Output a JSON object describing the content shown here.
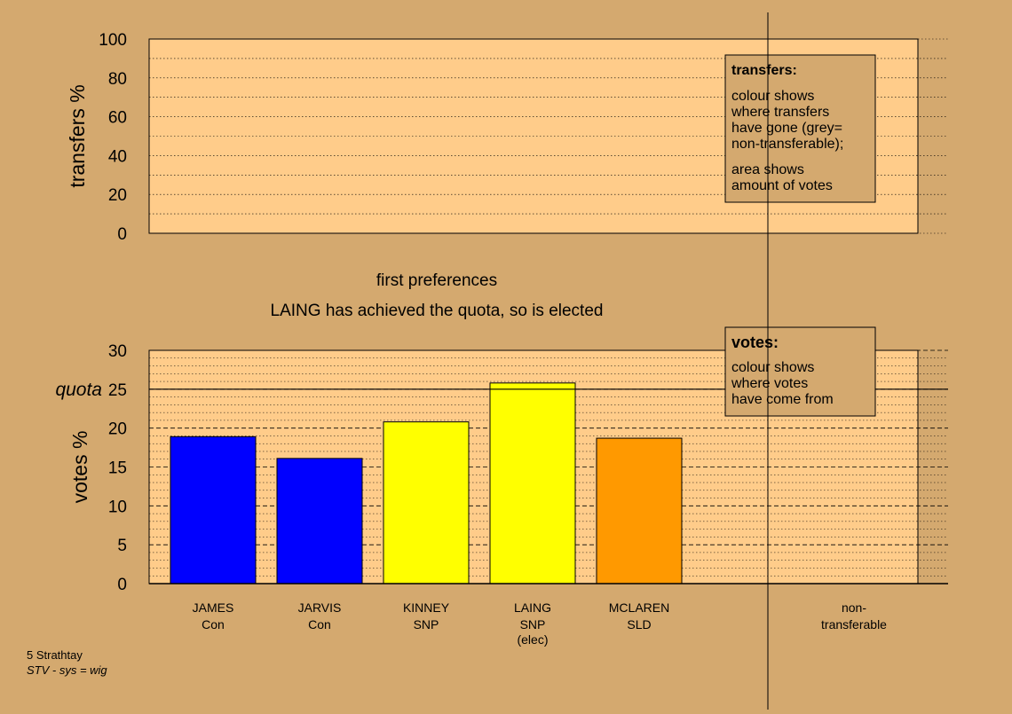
{
  "colors": {
    "background": "#d4a96f",
    "panel": "#ffcc8a",
    "con": "#0000ff",
    "snp": "#ffff00",
    "sld": "#ff9900",
    "legend_box": "#d4a96f"
  },
  "chart_data": [
    {
      "type": "bar",
      "title": "",
      "ylabel": "transfers %",
      "ylim": [
        0,
        100
      ],
      "yticks": [
        0,
        20,
        40,
        60,
        80,
        100
      ],
      "grid": true,
      "series": [],
      "legend": {
        "position": "top-right",
        "title": "transfers:",
        "lines1": [
          "colour shows",
          "where transfers",
          "have gone (grey=",
          "non-transferable);"
        ],
        "lines2": [
          "area shows",
          "amount of votes"
        ]
      }
    },
    {
      "type": "bar",
      "title": "first preferences",
      "subtitle": "LAING has achieved the quota, so is elected",
      "ylabel": "votes %",
      "ylim": [
        0,
        30
      ],
      "yticks": [
        0,
        5,
        10,
        15,
        20,
        25,
        30
      ],
      "quota": 25,
      "quota_label": "quota",
      "grid": true,
      "categories": [
        {
          "name": "JAMES",
          "party": "Con",
          "note": ""
        },
        {
          "name": "JARVIS",
          "party": "Con",
          "note": ""
        },
        {
          "name": "KINNEY",
          "party": "SNP",
          "note": ""
        },
        {
          "name": "LAING",
          "party": "SNP",
          "note": "(elec)"
        },
        {
          "name": "MCLAREN",
          "party": "SLD",
          "note": ""
        }
      ],
      "values": [
        18.9,
        16.1,
        20.8,
        25.8,
        18.7
      ],
      "bar_colors": [
        "#0000ff",
        "#0000ff",
        "#ffff00",
        "#ffff00",
        "#ff9900"
      ],
      "nontransferable_label": [
        "non-",
        "transferable"
      ],
      "nontransferable_value": 0,
      "legend": {
        "position": "top-right",
        "title": "votes:",
        "lines": [
          "colour shows",
          "where votes",
          "have come from"
        ]
      }
    }
  ],
  "footer": {
    "constituency": "5 Strathtay",
    "system": "STV - sys = wig"
  }
}
